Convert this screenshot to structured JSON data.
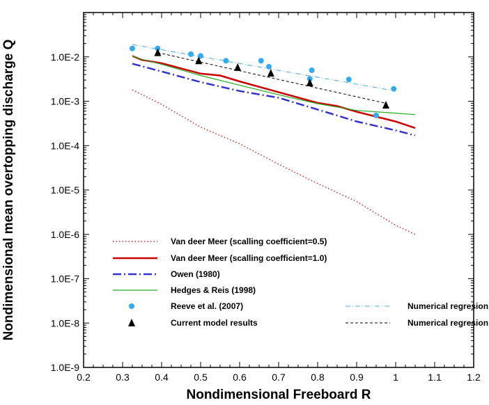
{
  "chart_data": {
    "type": "line",
    "title": "",
    "xlabel": "Nondimensional Freeboard R",
    "ylabel": "Nondimensional mean overtopping discharge Q",
    "xlim": [
      0.2,
      1.2
    ],
    "ylim": [
      1e-09,
      0.1
    ],
    "y_scale": "log",
    "x_ticks": [
      "0.2",
      "0.3",
      "0.4",
      "0.5",
      "0.6",
      "0.7",
      "0.8",
      "0.9",
      "1",
      "1.1",
      "1.2"
    ],
    "y_ticks": [
      "1.0E-9",
      "1.0E-8",
      "1.0E-7",
      "1.0E-6",
      "1.0E-5",
      "1.0E-4",
      "1.0E-3",
      "1.0E-2"
    ],
    "grid": false,
    "legend_placement": "bottom-left",
    "series": [
      {
        "name": "Van deer Meer (scalling coefficient=0.5)",
        "color": "#cc2222",
        "style": "dotted",
        "x": [
          0.325,
          0.4,
          0.5,
          0.6,
          0.7,
          0.8,
          0.9,
          1.0,
          1.05
        ],
        "y": [
          0.0018,
          0.00085,
          0.00026,
          0.00011,
          3.8e-05,
          1.4e-05,
          5.5e-06,
          1.6e-06,
          1e-06
        ]
      },
      {
        "name": "Van deer Meer (scalling coefficient=1.0)",
        "color": "#cc0000",
        "style": "solid-thick",
        "x": [
          0.325,
          0.35,
          0.4,
          0.45,
          0.5,
          0.55,
          0.6,
          0.7,
          0.8,
          0.85,
          0.9,
          1.0,
          1.05
        ],
        "y": [
          0.0105,
          0.0085,
          0.0072,
          0.0055,
          0.0042,
          0.0038,
          0.0028,
          0.0016,
          0.00092,
          0.00078,
          0.00058,
          0.00035,
          0.00025
        ]
      },
      {
        "name": "Owen (1980)",
        "color": "#3333cc",
        "style": "dash-dot-thick",
        "x": [
          0.325,
          0.4,
          0.5,
          0.6,
          0.7,
          0.8,
          0.9,
          1.0,
          1.05
        ],
        "y": [
          0.007,
          0.0047,
          0.0027,
          0.0017,
          0.0012,
          0.00065,
          0.00035,
          0.00022,
          0.00017
        ]
      },
      {
        "name": "Hedges & Reis (1998)",
        "color": "#22aa22",
        "style": "solid-thin",
        "x": [
          0.325,
          0.35,
          0.4,
          0.5,
          0.6,
          0.7,
          0.8,
          0.9,
          1.0,
          1.05
        ],
        "y": [
          0.0105,
          0.0088,
          0.0068,
          0.0038,
          0.0023,
          0.0014,
          0.00088,
          0.00062,
          0.00054,
          0.0005
        ]
      },
      {
        "name": "Reeve et al. (2007)",
        "color": "#33aaee",
        "style": "markers-circle",
        "x": [
          0.325,
          0.39,
          0.475,
          0.5,
          0.565,
          0.655,
          0.675,
          0.78,
          0.785,
          0.88,
          0.95,
          0.995
        ],
        "y": [
          0.0155,
          0.0155,
          0.0115,
          0.0105,
          0.0082,
          0.0082,
          0.006,
          0.0032,
          0.005,
          0.0031,
          0.00048,
          0.0019
        ]
      },
      {
        "name": "Current model results",
        "color": "#000000",
        "style": "markers-triangle",
        "x": [
          0.39,
          0.495,
          0.595,
          0.68,
          0.78,
          0.975
        ],
        "y": [
          0.0125,
          0.0082,
          0.0058,
          0.0043,
          0.0026,
          0.00082
        ]
      },
      {
        "name": "Numerical regresion",
        "color": "#44aadd",
        "style": "dash-dot-thin",
        "x": [
          0.325,
          1.0
        ],
        "y": [
          0.019,
          0.0017
        ]
      },
      {
        "name": "Numerical regresion",
        "color": "#000000",
        "style": "dashed-thin",
        "x": [
          0.39,
          0.975
        ],
        "y": [
          0.0125,
          0.0009
        ]
      }
    ]
  }
}
